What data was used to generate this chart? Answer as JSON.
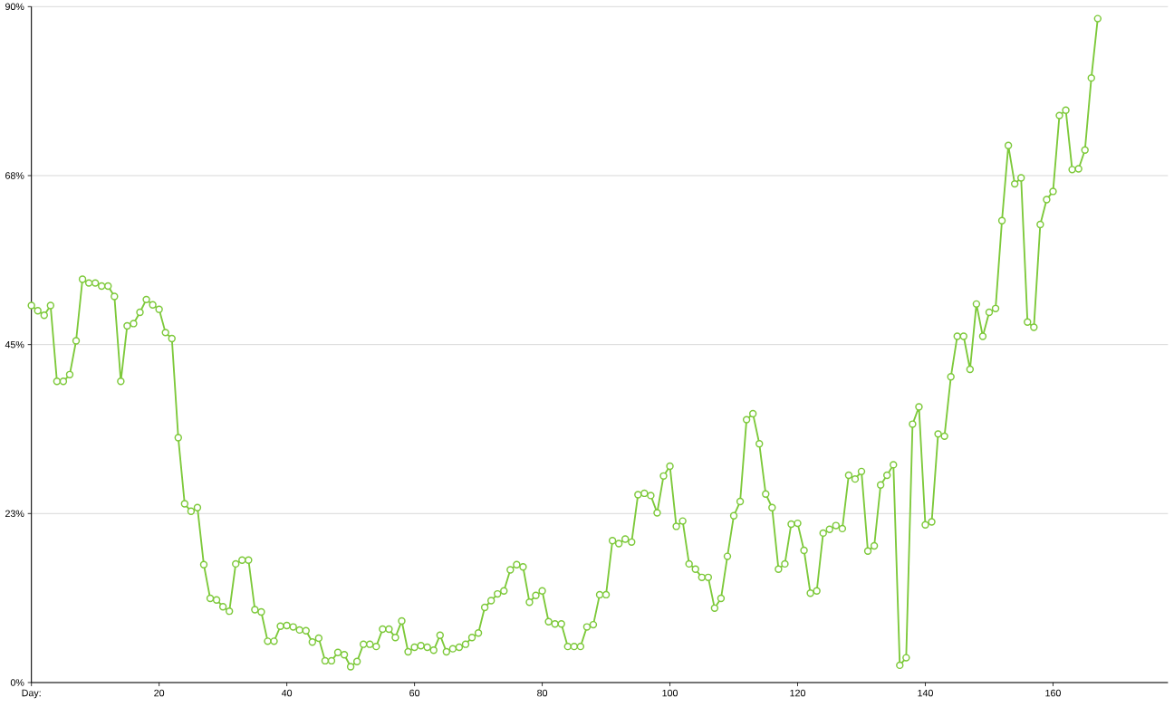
{
  "chart_data": {
    "type": "line",
    "x": [
      0,
      1,
      2,
      3,
      4,
      5,
      6,
      7,
      8,
      9,
      10,
      11,
      12,
      13,
      14,
      15,
      16,
      17,
      18,
      19,
      20,
      21,
      22,
      23,
      24,
      25,
      26,
      27,
      28,
      29,
      30,
      31,
      32,
      33,
      34,
      35,
      36,
      37,
      38,
      39,
      40,
      41,
      42,
      43,
      44,
      45,
      46,
      47,
      48,
      49,
      50,
      51,
      52,
      53,
      54,
      55,
      56,
      57,
      58,
      59,
      60,
      61,
      62,
      63,
      64,
      65,
      66,
      67,
      68,
      69,
      70,
      71,
      72,
      73,
      74,
      75,
      76,
      77,
      78,
      79,
      80,
      81,
      82,
      83,
      84,
      85,
      86,
      87,
      88,
      89,
      90,
      91,
      92,
      93,
      94,
      95,
      96,
      97,
      98,
      99,
      100,
      101,
      102,
      103,
      104,
      105,
      106,
      107,
      108,
      109,
      110,
      111,
      112,
      113,
      114,
      115,
      116,
      117,
      118,
      119,
      120,
      121,
      122,
      123,
      124,
      125,
      126,
      127,
      128,
      129,
      130,
      131,
      132,
      133,
      134,
      135,
      136,
      137,
      138,
      139,
      140,
      141,
      142,
      143,
      144,
      145,
      146,
      147,
      148,
      149,
      150,
      151,
      152,
      153,
      154,
      155,
      156,
      157,
      158,
      159,
      160,
      161,
      162,
      163,
      164,
      165,
      166,
      167
    ],
    "values": [
      50.2,
      49.5,
      48.9,
      50.2,
      40.1,
      40.1,
      41.0,
      45.5,
      53.7,
      53.2,
      53.2,
      52.8,
      52.8,
      51.4,
      40.1,
      47.5,
      47.8,
      49.3,
      51.0,
      50.3,
      49.7,
      46.6,
      45.8,
      32.6,
      23.8,
      22.8,
      23.3,
      15.7,
      11.2,
      11.0,
      10.1,
      9.5,
      15.8,
      16.3,
      16.3,
      9.7,
      9.4,
      5.5,
      5.5,
      7.5,
      7.6,
      7.4,
      7.0,
      6.9,
      5.4,
      5.9,
      2.9,
      2.9,
      4.0,
      3.7,
      2.1,
      2.8,
      5.1,
      5.1,
      4.8,
      7.1,
      7.1,
      6.0,
      8.2,
      4.1,
      4.7,
      4.9,
      4.7,
      4.3,
      6.3,
      4.1,
      4.5,
      4.7,
      5.1,
      6.0,
      6.6,
      10.0,
      10.9,
      11.8,
      12.2,
      15.0,
      15.7,
      15.4,
      10.7,
      11.6,
      12.2,
      8.1,
      7.8,
      7.8,
      4.8,
      4.8,
      4.8,
      7.4,
      7.7,
      11.7,
      11.7,
      18.9,
      18.5,
      19.1,
      18.7,
      25.0,
      25.2,
      24.9,
      22.6,
      27.5,
      28.8,
      20.8,
      21.5,
      15.8,
      15.1,
      14.0,
      14.0,
      9.9,
      11.2,
      16.8,
      22.2,
      24.1,
      35.0,
      35.8,
      31.8,
      25.1,
      23.3,
      15.1,
      15.8,
      21.1,
      21.2,
      17.6,
      11.9,
      12.2,
      19.9,
      20.4,
      20.9,
      20.5,
      27.6,
      27.1,
      28.1,
      17.5,
      18.2,
      26.3,
      27.6,
      29.0,
      2.3,
      3.3,
      34.4,
      36.7,
      21.0,
      21.4,
      33.1,
      32.8,
      40.7,
      46.1,
      46.1,
      41.7,
      50.4,
      46.1,
      49.3,
      49.8,
      61.5,
      71.5,
      66.4,
      67.2,
      48.0,
      47.3,
      61.0,
      64.3,
      65.4,
      75.5,
      76.2,
      68.3,
      68.4,
      70.9,
      80.5,
      88.4
    ],
    "color": "#7dc93a",
    "marker": "circle",
    "line_style": "solid",
    "grid": "y",
    "xlim": [
      0,
      178
    ],
    "xticks": [
      {
        "value": 0,
        "label": "Day:"
      },
      20,
      40,
      60,
      80,
      100,
      120,
      140,
      160
    ],
    "ylim": [
      0,
      90
    ],
    "yticks": [
      {
        "value": 0,
        "label": "0%"
      },
      {
        "value": 22.5,
        "label": "23%"
      },
      {
        "value": 45,
        "label": "45%"
      },
      {
        "value": 67.5,
        "label": "68%"
      },
      {
        "value": 90,
        "label": "90%"
      }
    ]
  }
}
